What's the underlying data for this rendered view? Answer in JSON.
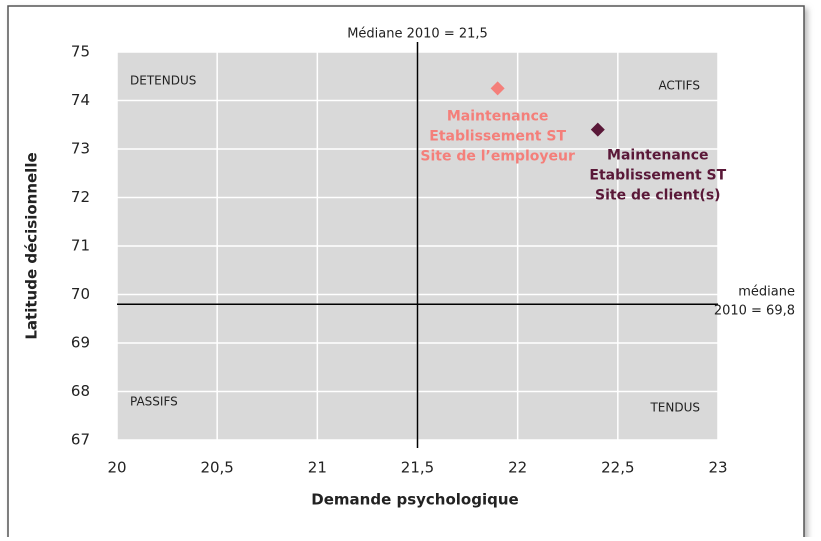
{
  "chart_data": {
    "type": "scatter",
    "xlabel": "Demande psychologique",
    "ylabel": "Latitude décisionnelle",
    "xlim": [
      20,
      23
    ],
    "ylim": [
      67,
      75
    ],
    "xticks": [
      20,
      {
        "value": 20.5,
        "label": "20,5"
      },
      21,
      {
        "value": 21.5,
        "label": "21,5"
      },
      22,
      {
        "value": 22.5,
        "label": "22,5"
      },
      23
    ],
    "yticks": [
      67,
      68,
      69,
      70,
      71,
      72,
      73,
      74,
      75
    ],
    "grid": true,
    "series": [
      {
        "color": "#f47f7a",
        "x": [
          21.9
        ],
        "values": [
          74.25
        ],
        "label": [
          "Maintenance",
          "Etablissement ST",
          "Site de l’employeur"
        ]
      },
      {
        "color": "#5a1838",
        "x": [
          22.4
        ],
        "values": [
          73.4
        ],
        "label": [
          "Maintenance",
          "Etablissement ST",
          "Site de client(s)"
        ]
      }
    ],
    "reference_lines": [
      {
        "axis": "x",
        "value": 21.5,
        "label": [
          "Médiane 2010 = 21,5"
        ]
      },
      {
        "axis": "y",
        "value": 69.8,
        "label": [
          "médiane",
          "2010 = 69,8"
        ]
      }
    ],
    "quadrants": {
      "top_left": "DETENDUS",
      "top_right": "ACTIFS",
      "bottom_left": "PASSIFS",
      "bottom_right": "TENDUS"
    }
  }
}
